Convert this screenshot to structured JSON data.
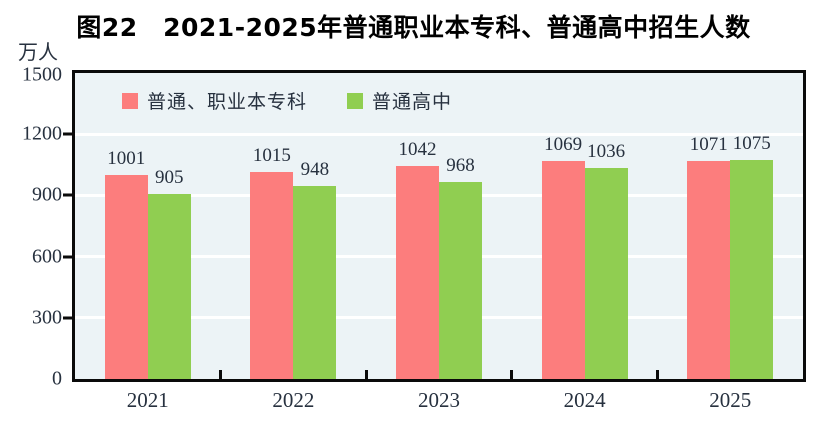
{
  "chart_data": {
    "type": "bar",
    "title": "图22　2021-2025年普通职业本专科、普通高中招生人数",
    "unit": "万人",
    "categories": [
      "2021",
      "2022",
      "2023",
      "2024",
      "2025"
    ],
    "series": [
      {
        "name": "普通、职业本专科",
        "color": "#FC7D7D",
        "values": [
          1001,
          1015,
          1042,
          1069,
          1071
        ]
      },
      {
        "name": "普通高中",
        "color": "#90CE51",
        "values": [
          905,
          948,
          968,
          1036,
          1075
        ]
      }
    ],
    "ylim": [
      0,
      1500
    ],
    "yticks": [
      0,
      300,
      600,
      900,
      1200,
      1500
    ],
    "grid": true,
    "gridline_color": "#ffffff",
    "plot_background": "#ecf3f6",
    "legend_position": "top-left-inside"
  }
}
